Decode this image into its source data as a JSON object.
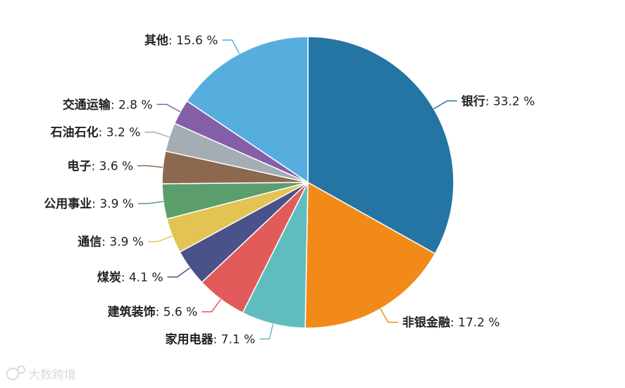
{
  "chart_data": {
    "type": "pie",
    "start_angle_deg": -90,
    "direction": "clockwise",
    "label_unit": " %",
    "slices": [
      {
        "name": "银行",
        "value": 33.2,
        "color": "#2475a3"
      },
      {
        "name": "非银金融",
        "value": 17.2,
        "color": "#f28a1a"
      },
      {
        "name": "家用电器",
        "value": 7.1,
        "color": "#60bdbe"
      },
      {
        "name": "建筑装饰",
        "value": 5.6,
        "color": "#e05b5a"
      },
      {
        "name": "煤炭",
        "value": 4.1,
        "color": "#4a528a"
      },
      {
        "name": "通信",
        "value": 3.9,
        "color": "#e3c353"
      },
      {
        "name": "公用事业",
        "value": 3.9,
        "color": "#5c9d6c"
      },
      {
        "name": "电子",
        "value": 3.6,
        "color": "#8d6851"
      },
      {
        "name": "石油石化",
        "value": 3.2,
        "color": "#a4acb4"
      },
      {
        "name": "交通运输",
        "value": 2.8,
        "color": "#845fa8"
      },
      {
        "name": "其他",
        "value": 15.6,
        "color": "#56aede"
      }
    ]
  },
  "watermark": {
    "text": "大数跨境",
    "icon": "bubble-logo-icon"
  }
}
